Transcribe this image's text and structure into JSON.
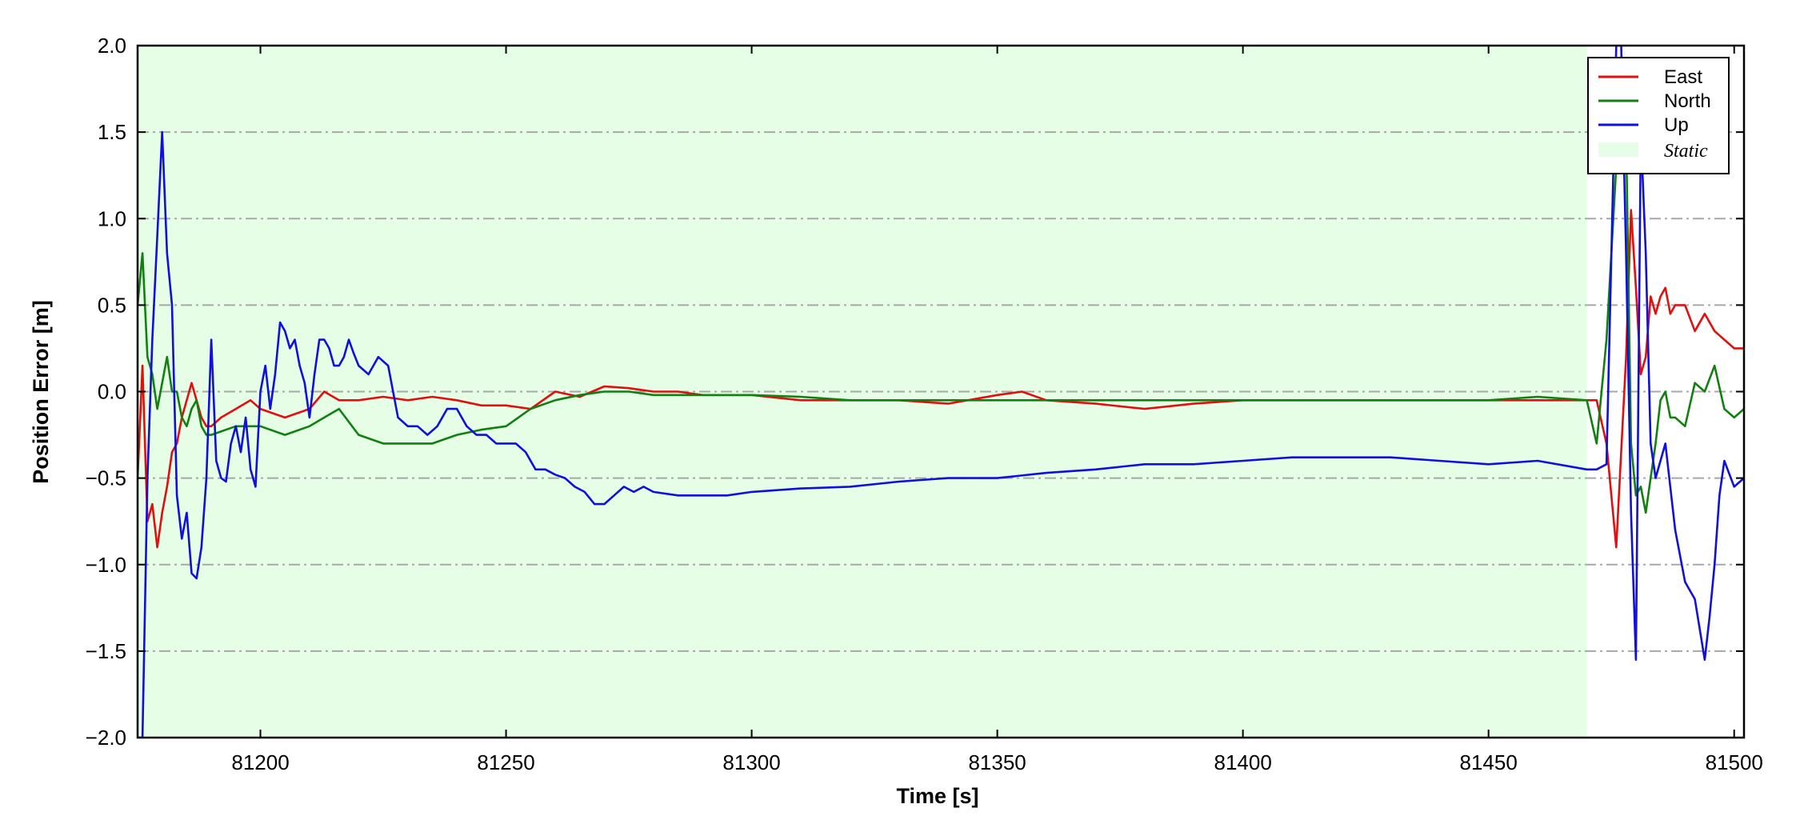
{
  "chart_data": {
    "type": "line",
    "xlabel": "Time [s]",
    "ylabel": "Position Error [m]",
    "xlim": [
      81175,
      81502
    ],
    "ylim": [
      -2.0,
      2.0
    ],
    "x_ticks": [
      81200,
      81250,
      81300,
      81350,
      81400,
      81450,
      81500
    ],
    "x_tick_labels": [
      "81200",
      "81250",
      "81300",
      "81350",
      "81400",
      "81450",
      "81500"
    ],
    "y_ticks": [
      -2.0,
      -1.5,
      -1.0,
      -0.5,
      0.0,
      0.5,
      1.0,
      1.5,
      2.0
    ],
    "y_tick_labels": [
      "−2.0",
      "−1.5",
      "−1.0",
      "−0.5",
      "0.0",
      "0.5",
      "1.0",
      "1.5",
      "2.0"
    ],
    "grid": "horizontal dash-dot",
    "legend_position": "top-right",
    "static_region": {
      "label": "Static",
      "x_start": 81175,
      "x_end": 81470,
      "color": "#e6fde6"
    },
    "series": [
      {
        "name": "East",
        "color": "#e01010",
        "x": [
          81175,
          81176,
          81177,
          81178,
          81179,
          81180,
          81181,
          81182,
          81183,
          81184,
          81185,
          81186,
          81187,
          81188,
          81189,
          81190,
          81192,
          81195,
          81198,
          81200,
          81205,
          81210,
          81213,
          81216,
          81220,
          81225,
          81230,
          81235,
          81240,
          81245,
          81250,
          81255,
          81260,
          81265,
          81270,
          81275,
          81280,
          81285,
          81290,
          81295,
          81300,
          81310,
          81320,
          81330,
          81340,
          81350,
          81355,
          81360,
          81370,
          81380,
          81390,
          81400,
          81410,
          81420,
          81430,
          81440,
          81450,
          81460,
          81470,
          81472,
          81474,
          81476,
          81478,
          81479,
          81480,
          81481,
          81482,
          81483,
          81484,
          81485,
          81486,
          81487,
          81488,
          81490,
          81492,
          81494,
          81496,
          81498,
          81500,
          81502
        ],
        "y": [
          -0.5,
          0.15,
          -0.75,
          -0.65,
          -0.9,
          -0.7,
          -0.55,
          -0.35,
          -0.3,
          -0.15,
          -0.05,
          0.05,
          -0.05,
          -0.15,
          -0.2,
          -0.2,
          -0.15,
          -0.1,
          -0.05,
          -0.1,
          -0.15,
          -0.1,
          0.0,
          -0.05,
          -0.05,
          -0.03,
          -0.05,
          -0.03,
          -0.05,
          -0.08,
          -0.08,
          -0.1,
          0.0,
          -0.03,
          0.03,
          0.02,
          0.0,
          0.0,
          -0.02,
          -0.02,
          -0.02,
          -0.05,
          -0.05,
          -0.05,
          -0.07,
          -0.02,
          0.0,
          -0.05,
          -0.07,
          -0.1,
          -0.07,
          -0.05,
          -0.05,
          -0.05,
          -0.05,
          -0.05,
          -0.05,
          -0.05,
          -0.05,
          -0.05,
          -0.3,
          -0.9,
          0.2,
          1.05,
          0.6,
          0.1,
          0.2,
          0.55,
          0.45,
          0.55,
          0.6,
          0.45,
          0.5,
          0.5,
          0.35,
          0.45,
          0.35,
          0.3,
          0.25,
          0.25
        ]
      },
      {
        "name": "North",
        "color": "#118011",
        "x": [
          81175,
          81176,
          81177,
          81178,
          81179,
          81180,
          81181,
          81182,
          81183,
          81184,
          81185,
          81186,
          81187,
          81188,
          81189,
          81190,
          81195,
          81200,
          81205,
          81210,
          81213,
          81216,
          81220,
          81225,
          81230,
          81235,
          81240,
          81245,
          81250,
          81255,
          81260,
          81265,
          81270,
          81275,
          81280,
          81290,
          81300,
          81310,
          81320,
          81330,
          81340,
          81350,
          81360,
          81370,
          81380,
          81390,
          81400,
          81410,
          81420,
          81430,
          81440,
          81450,
          81460,
          81470,
          81472,
          81474,
          81476,
          81477,
          81478,
          81479,
          81480,
          81481,
          81482,
          81483,
          81484,
          81485,
          81486,
          81487,
          81488,
          81490,
          81492,
          81494,
          81496,
          81498,
          81500,
          81502
        ],
        "y": [
          0.5,
          0.8,
          0.2,
          0.1,
          -0.1,
          0.05,
          0.2,
          0.0,
          0.0,
          -0.15,
          -0.2,
          -0.1,
          -0.05,
          -0.2,
          -0.25,
          -0.25,
          -0.2,
          -0.2,
          -0.25,
          -0.2,
          -0.15,
          -0.1,
          -0.25,
          -0.3,
          -0.3,
          -0.3,
          -0.25,
          -0.22,
          -0.2,
          -0.1,
          -0.05,
          -0.02,
          0.0,
          0.0,
          -0.02,
          -0.02,
          -0.02,
          -0.03,
          -0.05,
          -0.05,
          -0.05,
          -0.05,
          -0.05,
          -0.05,
          -0.05,
          -0.05,
          -0.05,
          -0.05,
          -0.05,
          -0.05,
          -0.05,
          -0.05,
          -0.03,
          -0.05,
          -0.3,
          0.3,
          1.3,
          1.7,
          1.5,
          -0.3,
          -0.6,
          -0.55,
          -0.7,
          -0.5,
          -0.3,
          -0.05,
          0.0,
          -0.15,
          -0.15,
          -0.2,
          0.05,
          0.0,
          0.15,
          -0.1,
          -0.15,
          -0.1
        ]
      },
      {
        "name": "Up",
        "color": "#1010dd",
        "x": [
          81175,
          81176,
          81177,
          81178,
          81179,
          81180,
          81181,
          81182,
          81183,
          81184,
          81185,
          81186,
          81187,
          81188,
          81189,
          81190,
          81191,
          81192,
          81193,
          81194,
          81195,
          81196,
          81197,
          81198,
          81199,
          81200,
          81201,
          81202,
          81203,
          81204,
          81205,
          81206,
          81207,
          81208,
          81209,
          81210,
          81211,
          81212,
          81213,
          81214,
          81215,
          81216,
          81217,
          81218,
          81219,
          81220,
          81222,
          81224,
          81226,
          81228,
          81230,
          81232,
          81234,
          81236,
          81238,
          81240,
          81242,
          81244,
          81246,
          81248,
          81250,
          81252,
          81254,
          81256,
          81258,
          81260,
          81262,
          81264,
          81266,
          81268,
          81270,
          81272,
          81274,
          81276,
          81278,
          81280,
          81285,
          81290,
          81295,
          81300,
          81310,
          81320,
          81330,
          81340,
          81350,
          81360,
          81370,
          81380,
          81390,
          81400,
          81410,
          81420,
          81430,
          81440,
          81450,
          81460,
          81470,
          81472,
          81474,
          81476,
          81477,
          81478,
          81479,
          81480,
          81481,
          81482,
          81483,
          81484,
          81486,
          81488,
          81490,
          81492,
          81494,
          81495,
          81496,
          81497,
          81498,
          81500,
          81502
        ],
        "y": [
          -2.0,
          -2.0,
          -0.5,
          0.3,
          0.9,
          1.5,
          0.8,
          0.5,
          -0.6,
          -0.85,
          -0.7,
          -1.05,
          -1.08,
          -0.9,
          -0.5,
          0.3,
          -0.4,
          -0.5,
          -0.52,
          -0.3,
          -0.2,
          -0.35,
          -0.15,
          -0.45,
          -0.55,
          0.0,
          0.15,
          -0.1,
          0.1,
          0.4,
          0.35,
          0.25,
          0.3,
          0.15,
          0.05,
          -0.15,
          0.1,
          0.3,
          0.3,
          0.25,
          0.15,
          0.15,
          0.2,
          0.3,
          0.22,
          0.15,
          0.1,
          0.2,
          0.15,
          -0.15,
          -0.2,
          -0.2,
          -0.25,
          -0.2,
          -0.1,
          -0.1,
          -0.2,
          -0.25,
          -0.25,
          -0.3,
          -0.3,
          -0.3,
          -0.35,
          -0.45,
          -0.45,
          -0.48,
          -0.5,
          -0.55,
          -0.58,
          -0.65,
          -0.65,
          -0.6,
          -0.55,
          -0.58,
          -0.55,
          -0.58,
          -0.6,
          -0.6,
          -0.6,
          -0.58,
          -0.56,
          -0.55,
          -0.52,
          -0.5,
          -0.5,
          -0.47,
          -0.45,
          -0.42,
          -0.42,
          -0.4,
          -0.38,
          -0.38,
          -0.38,
          -0.4,
          -0.42,
          -0.4,
          -0.45,
          -0.45,
          -0.42,
          2.0,
          2.0,
          0.8,
          -0.7,
          -1.55,
          1.5,
          0.8,
          -0.3,
          -0.5,
          -0.3,
          -0.8,
          -1.1,
          -1.2,
          -1.55,
          -1.3,
          -1.0,
          -0.6,
          -0.4,
          -0.55,
          -0.5
        ]
      }
    ]
  }
}
